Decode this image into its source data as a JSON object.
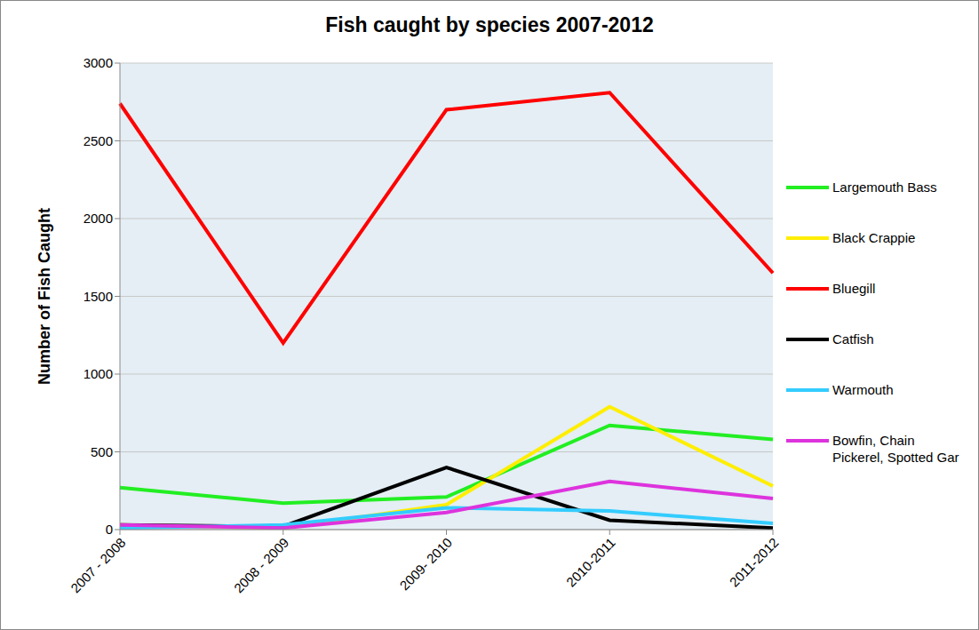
{
  "chart_data": {
    "type": "line",
    "title": "Fish caught by species 2007-2012",
    "ylabel": "Number of Fish Caught",
    "categories": [
      "2007 - 2008",
      "2008 - 2009",
      "2009- 2010",
      "2010-2011",
      "2011-2012"
    ],
    "series": [
      {
        "name": "Largemouth Bass",
        "color": "#22ee22",
        "values": [
          270,
          170,
          210,
          670,
          580
        ]
      },
      {
        "name": "Black Crappie",
        "color": "#ffee00",
        "values": [
          30,
          10,
          160,
          790,
          280
        ]
      },
      {
        "name": "Bluegill",
        "color": "#ff0000",
        "values": [
          2740,
          1200,
          2700,
          2810,
          1650
        ]
      },
      {
        "name": "Catfish",
        "color": "#000000",
        "values": [
          30,
          20,
          400,
          60,
          10
        ]
      },
      {
        "name": "Warmouth",
        "color": "#33ccff",
        "values": [
          10,
          30,
          140,
          120,
          40
        ]
      },
      {
        "name": "Bowfin, Chain Pickerel, Spotted Gar",
        "color": "#dd33dd",
        "values": [
          30,
          10,
          110,
          310,
          200
        ]
      }
    ],
    "ylim": [
      0,
      3000
    ],
    "yticks": [
      0,
      500,
      1000,
      1500,
      2000,
      2500,
      3000
    ],
    "grid": true,
    "legend": "right"
  }
}
